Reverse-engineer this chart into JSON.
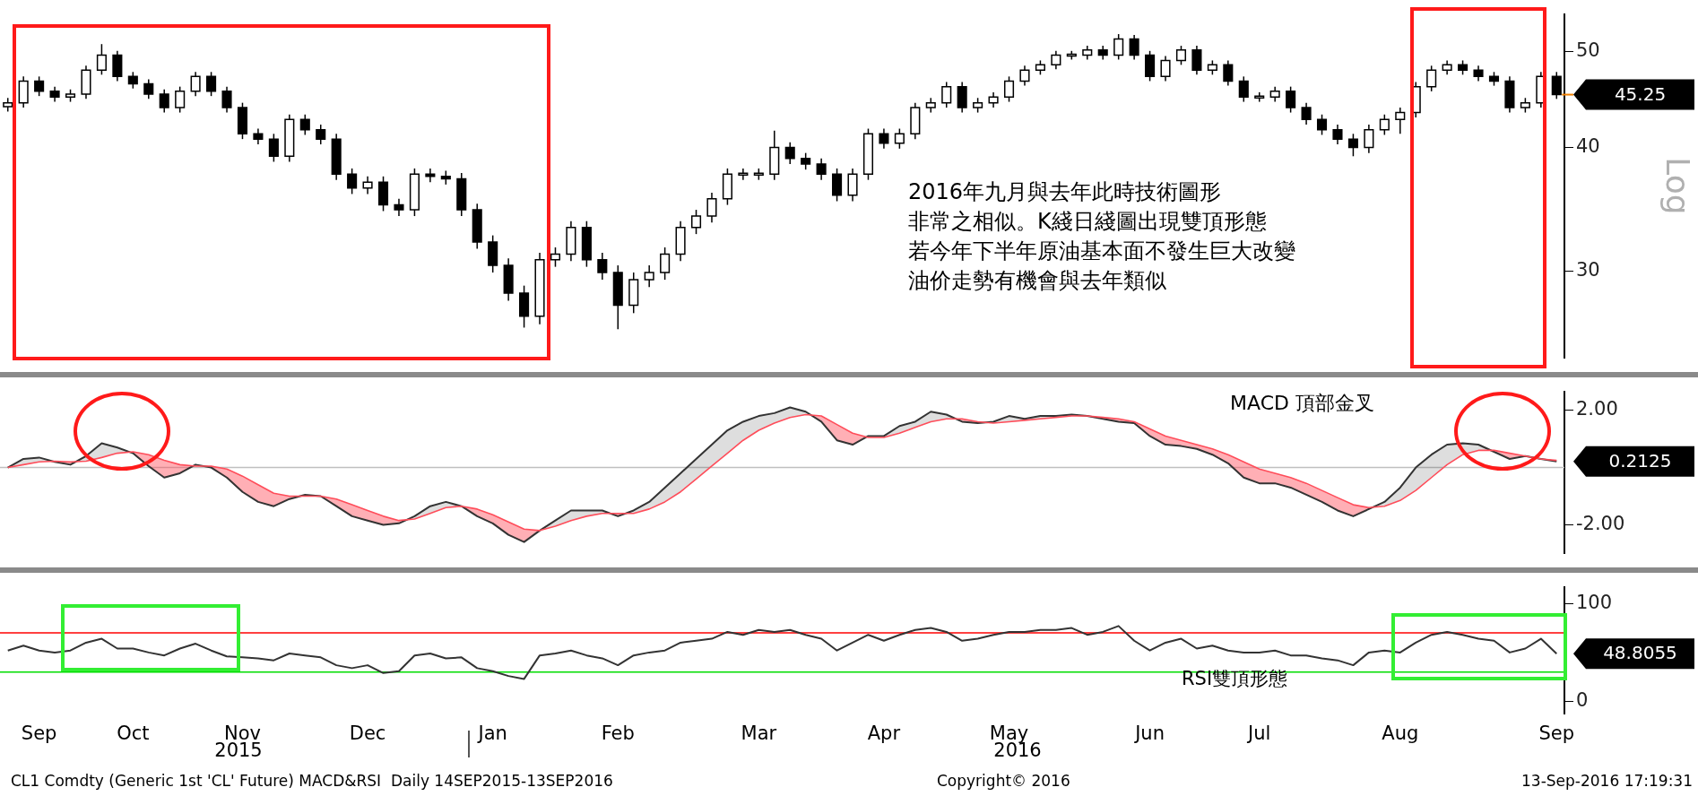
{
  "chart_data": [
    {
      "type": "candlestick",
      "log": "y",
      "ylabel": "Log",
      "ylim": [
        24.5,
        54.6
      ],
      "yticks": [
        30,
        40,
        50
      ],
      "tick_labels": "y",
      "categories": [
        null,
        null,
        null,
        null,
        null,
        null,
        null,
        null,
        null,
        null,
        null,
        null,
        null,
        null,
        null,
        null,
        null,
        null,
        null,
        null,
        null,
        null,
        null,
        null,
        null,
        null,
        null,
        null,
        null,
        null,
        null,
        null,
        null,
        null,
        null,
        null,
        null,
        null,
        null,
        null,
        null,
        null,
        null,
        null,
        null,
        null,
        null,
        null,
        null,
        null,
        null,
        null,
        null,
        null,
        null,
        null,
        null,
        null,
        null,
        null,
        null,
        null,
        null,
        null,
        null,
        null,
        null,
        null,
        null,
        null,
        null,
        null,
        null,
        null,
        null,
        null,
        null,
        null,
        null,
        null,
        null,
        null,
        null,
        null,
        null,
        null,
        null,
        null,
        null,
        null,
        null,
        null,
        null,
        null,
        null,
        null,
        null,
        null,
        null,
        null
      ],
      "ohlc": [
        [
          44.0,
          44.9,
          43.5,
          44.4
        ],
        [
          44.4,
          47.2,
          43.9,
          46.7
        ],
        [
          46.7,
          47.2,
          45.1,
          45.6
        ],
        [
          45.6,
          46.1,
          44.5,
          45.0
        ],
        [
          45.0,
          45.8,
          44.5,
          45.3
        ],
        [
          45.3,
          48.4,
          44.8,
          47.9
        ],
        [
          47.9,
          50.9,
          47.4,
          49.6
        ],
        [
          49.6,
          50.1,
          46.7,
          47.2
        ],
        [
          47.2,
          47.7,
          45.9,
          46.4
        ],
        [
          46.4,
          46.9,
          44.8,
          45.3
        ],
        [
          45.3,
          45.8,
          43.4,
          43.9
        ],
        [
          43.9,
          46.1,
          43.4,
          45.6
        ],
        [
          45.6,
          47.7,
          45.1,
          47.2
        ],
        [
          47.2,
          47.7,
          45.1,
          45.6
        ],
        [
          45.6,
          46.1,
          43.4,
          43.9
        ],
        [
          43.9,
          44.4,
          40.8,
          41.3
        ],
        [
          41.3,
          41.8,
          40.3,
          40.8
        ],
        [
          40.8,
          41.3,
          38.7,
          39.2
        ],
        [
          39.2,
          43.2,
          38.7,
          42.7
        ],
        [
          42.7,
          43.2,
          41.2,
          41.7
        ],
        [
          41.7,
          42.2,
          40.3,
          40.8
        ],
        [
          40.8,
          41.3,
          37.1,
          37.6
        ],
        [
          37.6,
          38.1,
          35.9,
          36.4
        ],
        [
          36.4,
          37.4,
          35.9,
          36.9
        ],
        [
          36.9,
          37.4,
          34.5,
          35.0
        ],
        [
          35.0,
          35.5,
          34.1,
          34.6
        ],
        [
          34.6,
          38.1,
          34.1,
          37.6
        ],
        [
          37.6,
          38.1,
          36.9,
          37.4
        ],
        [
          37.4,
          37.9,
          36.7,
          37.2
        ],
        [
          37.2,
          37.7,
          34.1,
          34.6
        ],
        [
          34.6,
          35.1,
          31.6,
          32.1
        ],
        [
          32.1,
          32.6,
          29.9,
          30.4
        ],
        [
          30.4,
          30.9,
          28.0,
          28.5
        ],
        [
          28.5,
          29.0,
          26.3,
          27.0
        ],
        [
          27.0,
          31.3,
          26.5,
          30.8
        ],
        [
          30.8,
          31.7,
          30.3,
          31.2
        ],
        [
          31.2,
          33.7,
          30.7,
          33.2
        ],
        [
          33.2,
          33.7,
          30.3,
          30.8
        ],
        [
          30.8,
          31.3,
          29.4,
          29.9
        ],
        [
          29.9,
          30.4,
          26.2,
          27.7
        ],
        [
          27.7,
          29.9,
          27.2,
          29.4
        ],
        [
          29.4,
          30.4,
          28.9,
          29.9
        ],
        [
          29.9,
          31.7,
          29.4,
          31.2
        ],
        [
          31.2,
          33.7,
          30.7,
          33.2
        ],
        [
          33.2,
          34.6,
          32.7,
          34.1
        ],
        [
          34.1,
          36.0,
          33.6,
          35.5
        ],
        [
          35.5,
          38.1,
          35.0,
          37.6
        ],
        [
          37.6,
          38.1,
          37.1,
          37.6
        ],
        [
          37.6,
          38.1,
          37.1,
          37.6
        ],
        [
          37.6,
          41.6,
          37.1,
          40.0
        ],
        [
          40.0,
          40.5,
          38.5,
          39.0
        ],
        [
          39.0,
          39.5,
          38.0,
          38.5
        ],
        [
          38.5,
          39.0,
          37.1,
          37.6
        ],
        [
          37.6,
          38.1,
          35.3,
          35.8
        ],
        [
          35.8,
          38.1,
          35.3,
          37.6
        ],
        [
          37.6,
          41.8,
          37.1,
          41.3
        ],
        [
          41.3,
          41.8,
          39.9,
          40.4
        ],
        [
          40.4,
          41.8,
          39.9,
          41.3
        ],
        [
          41.3,
          44.4,
          40.8,
          43.9
        ],
        [
          43.9,
          44.9,
          43.4,
          44.4
        ],
        [
          44.4,
          46.6,
          43.9,
          46.1
        ],
        [
          46.1,
          46.6,
          43.4,
          43.9
        ],
        [
          43.9,
          44.9,
          43.4,
          44.4
        ],
        [
          44.4,
          45.5,
          43.9,
          45.0
        ],
        [
          45.0,
          47.2,
          44.5,
          46.7
        ],
        [
          46.7,
          48.4,
          46.2,
          47.9
        ],
        [
          47.9,
          49.0,
          47.4,
          48.5
        ],
        [
          48.5,
          50.1,
          48.0,
          49.6
        ],
        [
          49.6,
          50.1,
          49.1,
          49.6
        ],
        [
          49.6,
          50.7,
          49.1,
          50.2
        ],
        [
          50.2,
          50.7,
          49.1,
          49.6
        ],
        [
          49.6,
          52.1,
          49.1,
          51.5
        ],
        [
          51.5,
          52.0,
          49.1,
          49.6
        ],
        [
          49.6,
          50.1,
          46.7,
          47.2
        ],
        [
          47.2,
          49.5,
          46.7,
          49.0
        ],
        [
          49.0,
          50.7,
          48.5,
          50.2
        ],
        [
          50.2,
          50.7,
          47.4,
          47.9
        ],
        [
          47.9,
          49.0,
          47.4,
          48.5
        ],
        [
          48.5,
          49.0,
          46.2,
          46.7
        ],
        [
          46.7,
          47.2,
          44.5,
          45.0
        ],
        [
          45.0,
          45.5,
          44.5,
          45.0
        ],
        [
          45.0,
          46.1,
          44.5,
          45.6
        ],
        [
          45.6,
          46.1,
          43.4,
          43.9
        ],
        [
          43.9,
          44.4,
          42.2,
          42.7
        ],
        [
          42.7,
          43.2,
          41.2,
          41.7
        ],
        [
          41.7,
          42.2,
          40.3,
          40.8
        ],
        [
          40.8,
          41.3,
          39.2,
          40.0
        ],
        [
          40.0,
          42.2,
          39.5,
          41.7
        ],
        [
          41.7,
          43.2,
          41.2,
          42.7
        ],
        [
          42.7,
          43.9,
          41.3,
          43.4
        ],
        [
          43.4,
          46.6,
          42.9,
          46.1
        ],
        [
          46.1,
          48.4,
          45.6,
          47.9
        ],
        [
          47.9,
          49.0,
          47.4,
          48.5
        ],
        [
          48.5,
          49.0,
          47.4,
          47.9
        ],
        [
          47.9,
          48.4,
          46.7,
          47.2
        ],
        [
          47.2,
          47.7,
          46.2,
          46.7
        ],
        [
          46.7,
          47.2,
          43.4,
          43.9
        ],
        [
          43.9,
          44.9,
          43.4,
          44.4
        ],
        [
          44.4,
          47.7,
          43.9,
          47.2
        ],
        [
          47.2,
          47.7,
          44.8,
          45.25
        ]
      ],
      "annotations": [
        "2016年九月與去年此時技術圖形",
        "非常之相似。K綫日綫圖出現雙頂形態",
        "若今年下半年原油基本面不發生巨大改變",
        "油价走勢有機會與去年類似",
        "45.25"
      ]
    },
    {
      "type": "line",
      "ylim": [
        -3,
        2.66
      ],
      "yticks": [
        {
          "value": 2,
          "label": "2.00"
        },
        {
          "value": -2,
          "label": "-2.00"
        }
      ],
      "tick_labels": "y",
      "categories": [
        null,
        null,
        null,
        null,
        null,
        null,
        null,
        null,
        null,
        null,
        null,
        null,
        null,
        null,
        null,
        null,
        null,
        null,
        null,
        null,
        null,
        null,
        null,
        null,
        null,
        null,
        null,
        null,
        null,
        null,
        null,
        null,
        null,
        null,
        null,
        null,
        null,
        null,
        null,
        null,
        null,
        null,
        null,
        null,
        null,
        null,
        null,
        null,
        null,
        null,
        null,
        null,
        null,
        null,
        null,
        null,
        null,
        null,
        null,
        null,
        null,
        null,
        null,
        null,
        null,
        null,
        null,
        null,
        null,
        null,
        null,
        null,
        null,
        null,
        null,
        null,
        null,
        null,
        null,
        null,
        null,
        null,
        null,
        null,
        null,
        null,
        null,
        null,
        null,
        null,
        null,
        null,
        null,
        null,
        null,
        null,
        null,
        null,
        null,
        null
      ],
      "series": [
        {
          "color": "#333333",
          "values": [
            0,
            0.3,
            0.35,
            0.2,
            0.1,
            0.4,
            0.85,
            0.7,
            0.5,
            0.05,
            -0.35,
            -0.2,
            0.1,
            0,
            -0.35,
            -0.85,
            -1.2,
            -1.35,
            -1.1,
            -0.95,
            -1,
            -1.35,
            -1.7,
            -1.85,
            -2,
            -1.95,
            -1.7,
            -1.35,
            -1.2,
            -1.35,
            -1.7,
            -1.95,
            -2.35,
            -2.6,
            -2.2,
            -1.85,
            -1.5,
            -1.5,
            -1.5,
            -1.7,
            -1.5,
            -1.2,
            -0.7,
            -0.2,
            0.3,
            0.8,
            1.3,
            1.6,
            1.8,
            1.9,
            2.1,
            1.95,
            1.6,
            0.95,
            0.8,
            1.1,
            1.1,
            1.45,
            1.6,
            1.95,
            1.85,
            1.6,
            1.55,
            1.6,
            1.8,
            1.7,
            1.8,
            1.8,
            1.85,
            1.8,
            1.7,
            1.6,
            1.55,
            1.1,
            0.8,
            0.75,
            0.65,
            0.45,
            0.15,
            -0.35,
            -0.55,
            -0.55,
            -0.7,
            -0.95,
            -1.2,
            -1.5,
            -1.7,
            -1.45,
            -1.2,
            -0.7,
            0,
            0.45,
            0.8,
            0.85,
            0.8,
            0.55,
            0.3,
            0.4,
            0.3,
            0.2125
          ],
          "upper": [
            0,
            0.3,
            0.35,
            0.2,
            0.1,
            0.4,
            0.85,
            0.7,
            0.5,
            0.05,
            -0.35,
            -0.2,
            0.1,
            0,
            -0.35,
            -0.85,
            -1.2,
            -1.35,
            -1.1,
            -0.95,
            -1,
            -1.35,
            -1.7,
            -1.85,
            -2,
            -1.95,
            -1.7,
            -1.35,
            -1.2,
            -1.35,
            -1.7,
            -1.95,
            -2.35,
            -2.6,
            -2.2,
            -1.85,
            -1.5,
            -1.5,
            -1.5,
            -1.7,
            -1.5,
            -1.2,
            -0.7,
            -0.2,
            0.3,
            0.8,
            1.3,
            1.6,
            1.8,
            1.9,
            2.1,
            1.95,
            1.6,
            0.95,
            0.8,
            1.1,
            1.1,
            1.45,
            1.6,
            1.95,
            1.85,
            1.6,
            1.55,
            1.6,
            1.8,
            1.7,
            1.8,
            1.8,
            1.85,
            1.8,
            1.7,
            1.6,
            1.55,
            1.1,
            0.8,
            0.75,
            0.65,
            0.45,
            0.15,
            -0.35,
            -0.55,
            -0.55,
            -0.7,
            -0.95,
            -1.2,
            -1.5,
            -1.7,
            -1.45,
            -1.2,
            -0.7,
            0,
            0.45,
            0.8,
            0.85,
            0.8,
            0.55,
            0.3,
            0.4,
            0.3,
            0.2125
          ],
          "lower": [
            0,
            0.1,
            0.2,
            0.22,
            0.2,
            0.22,
            0.35,
            0.5,
            0.55,
            0.45,
            0.25,
            0.1,
            0.05,
            0.05,
            -0.05,
            -0.3,
            -0.6,
            -0.9,
            -1,
            -1,
            -1,
            -1.1,
            -1.3,
            -1.5,
            -1.7,
            -1.85,
            -1.8,
            -1.6,
            -1.4,
            -1.35,
            -1.45,
            -1.65,
            -1.9,
            -2.15,
            -2.2,
            -2.05,
            -1.85,
            -1.7,
            -1.6,
            -1.6,
            -1.6,
            -1.45,
            -1.2,
            -0.85,
            -0.4,
            0.05,
            0.5,
            0.95,
            1.3,
            1.55,
            1.75,
            1.85,
            1.8,
            1.5,
            1.2,
            1.05,
            1.05,
            1.2,
            1.4,
            1.6,
            1.7,
            1.7,
            1.6,
            1.55,
            1.6,
            1.65,
            1.7,
            1.75,
            1.8,
            1.8,
            1.75,
            1.7,
            1.6,
            1.35,
            1.1,
            0.95,
            0.8,
            0.65,
            0.45,
            0.2,
            -0.05,
            -0.2,
            -0.35,
            -0.55,
            -0.8,
            -1.05,
            -1.3,
            -1.4,
            -1.35,
            -1.15,
            -0.8,
            -0.35,
            0.1,
            0.45,
            0.6,
            0.6,
            0.5,
            0.4,
            0.3,
            0.25
          ]
        },
        {
          "color": "#ff4d5a",
          "values": [
            0,
            0.1,
            0.2,
            0.22,
            0.2,
            0.22,
            0.35,
            0.5,
            0.55,
            0.45,
            0.25,
            0.1,
            0.05,
            0.05,
            -0.05,
            -0.3,
            -0.6,
            -0.9,
            -1,
            -1,
            -1,
            -1.1,
            -1.3,
            -1.5,
            -1.7,
            -1.85,
            -1.8,
            -1.6,
            -1.4,
            -1.35,
            -1.45,
            -1.65,
            -1.9,
            -2.15,
            -2.2,
            -2.05,
            -1.85,
            -1.7,
            -1.6,
            -1.6,
            -1.6,
            -1.45,
            -1.2,
            -0.85,
            -0.4,
            0.05,
            0.5,
            0.95,
            1.3,
            1.55,
            1.75,
            1.85,
            1.8,
            1.5,
            1.2,
            1.05,
            1.05,
            1.2,
            1.4,
            1.6,
            1.7,
            1.7,
            1.6,
            1.55,
            1.6,
            1.65,
            1.7,
            1.75,
            1.8,
            1.8,
            1.75,
            1.7,
            1.6,
            1.35,
            1.1,
            0.95,
            0.8,
            0.65,
            0.45,
            0.2,
            -0.05,
            -0.2,
            -0.35,
            -0.55,
            -0.8,
            -1.05,
            -1.3,
            -1.4,
            -1.35,
            -1.15,
            -0.8,
            -0.35,
            0.1,
            0.45,
            0.6,
            0.6,
            0.5,
            0.4,
            0.3,
            0.25
          ]
        }
      ],
      "ref_lines": [
        {
          "axis": "y",
          "value": 0,
          "color": "#c0c0c0"
        }
      ],
      "annotations": [
        "MACD 頂部金叉",
        "0.2125"
      ]
    },
    {
      "type": "line",
      "ylim": [
        -13,
        117
      ],
      "yticks": [
        0,
        100
      ],
      "categories": [
        null,
        null,
        "Sep",
        null,
        null,
        null,
        null,
        null,
        "Oct",
        null,
        null,
        null,
        null,
        null,
        null,
        "Nov",
        null,
        null,
        null,
        null,
        null,
        null,
        null,
        "Dec",
        null,
        null,
        null,
        null,
        null,
        null,
        null,
        "Jan",
        null,
        null,
        null,
        null,
        null,
        null,
        null,
        "Feb",
        null,
        null,
        null,
        null,
        null,
        null,
        null,
        null,
        "Mar",
        null,
        null,
        null,
        null,
        null,
        null,
        null,
        "Apr",
        null,
        null,
        null,
        null,
        null,
        null,
        null,
        "May",
        null,
        null,
        null,
        null,
        null,
        null,
        null,
        null,
        "Jun",
        null,
        null,
        null,
        null,
        null,
        null,
        "Jul",
        null,
        null,
        null,
        null,
        null,
        null,
        null,
        null,
        "Aug",
        null,
        null,
        null,
        null,
        null,
        null,
        null,
        null,
        null,
        "Sep"
      ],
      "series": [
        {
          "color": "#333333",
          "values": [
            52,
            57,
            52,
            50,
            52,
            60,
            64,
            54,
            54,
            50,
            47,
            54,
            59,
            52,
            46,
            45,
            44,
            42,
            49,
            47,
            45,
            37,
            34,
            37,
            29,
            31,
            47,
            49,
            44,
            45,
            34,
            31,
            26,
            23,
            47,
            49,
            52,
            47,
            44,
            37,
            47,
            50,
            52,
            60,
            62,
            64,
            71,
            68,
            73,
            71,
            73,
            68,
            64,
            52,
            60,
            68,
            62,
            68,
            73,
            75,
            71,
            62,
            64,
            68,
            71,
            71,
            73,
            73,
            75,
            68,
            71,
            77,
            62,
            52,
            60,
            64,
            54,
            57,
            52,
            50,
            50,
            52,
            47,
            47,
            44,
            42,
            37,
            50,
            52,
            50,
            60,
            68,
            71,
            68,
            64,
            62,
            50,
            54,
            64,
            48.8055
          ]
        }
      ],
      "ref_lines": [
        {
          "axis": "y",
          "value": 70,
          "color": "#ff0000"
        },
        {
          "axis": "y",
          "value": 30,
          "color": "#00dd00"
        }
      ],
      "annotations": [
        "RSI雙頂形態",
        "2015",
        "2016",
        "CL1 Comdty (Generic 1st 'CL' Future) MACD&RSI  Daily 14SEP2015-13SEP2016",
        "Copyright© 2016",
        "13-Sep-2016 17:19:31",
        "48.8055"
      ]
    }
  ]
}
